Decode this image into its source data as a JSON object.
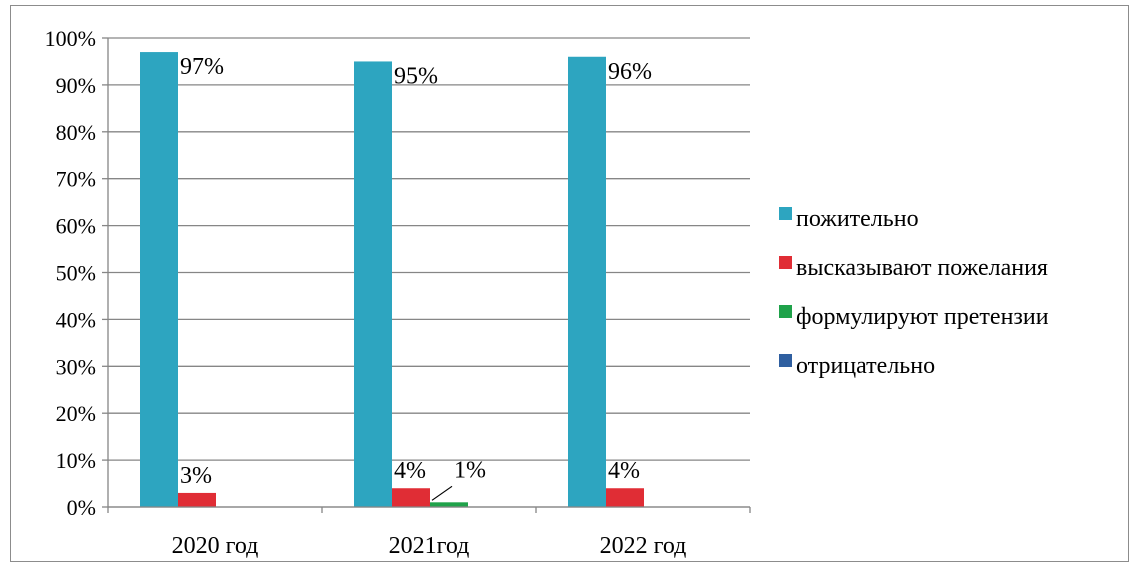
{
  "chart_data": {
    "type": "bar",
    "categories": [
      "2020 год",
      "2021год",
      "2022 год"
    ],
    "series": [
      {
        "name": "пожительно",
        "values": [
          97,
          95,
          96
        ],
        "color": "#2da5c0"
      },
      {
        "name": "высказывают пожелания",
        "values": [
          3,
          4,
          4
        ],
        "color": "#e02d35"
      },
      {
        "name": "формулируют претензии",
        "values": [
          0,
          1,
          0
        ],
        "color": "#1fa24a"
      },
      {
        "name": "отрицательно",
        "values": [
          0,
          0,
          0
        ],
        "color": "#2f5fa0"
      }
    ],
    "data_labels": [
      {
        "series": 0,
        "category": 0,
        "text": "97%"
      },
      {
        "series": 0,
        "category": 1,
        "text": "95%"
      },
      {
        "series": 0,
        "category": 2,
        "text": "96%"
      },
      {
        "series": 1,
        "category": 0,
        "text": "3%"
      },
      {
        "series": 1,
        "category": 1,
        "text": "4%"
      },
      {
        "series": 1,
        "category": 2,
        "text": "4%"
      },
      {
        "series": 2,
        "category": 1,
        "text": "1%"
      }
    ],
    "y_ticks": [
      "0%",
      "10%",
      "20%",
      "30%",
      "40%",
      "50%",
      "60%",
      "70%",
      "80%",
      "90%",
      "100%"
    ],
    "ylim": [
      0,
      100
    ],
    "grid": true,
    "legend_position": "right",
    "title": "",
    "xlabel": "",
    "ylabel": ""
  }
}
